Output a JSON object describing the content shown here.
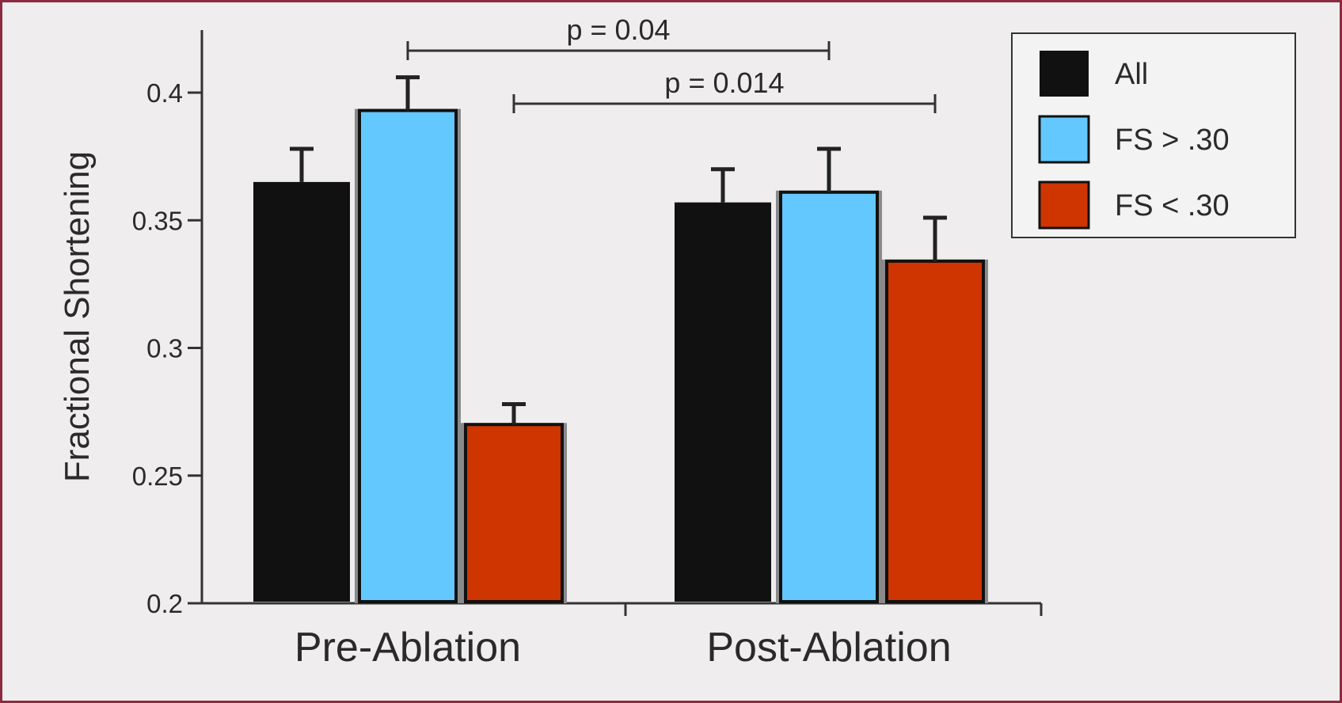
{
  "chart_data": {
    "type": "bar",
    "categories": [
      "Pre-Ablation",
      "Post-Ablation"
    ],
    "ylabel": "Fractional Shortening",
    "xlabel": "",
    "ylim": [
      0.2,
      0.4
    ],
    "yticks": [
      "0.2",
      "0.25",
      "0.3",
      "0.35",
      "0.4"
    ],
    "legend_position": "top-right",
    "series": [
      {
        "name": "All",
        "color": "#111111",
        "values": [
          0.365,
          0.357
        ],
        "errors": [
          0.013,
          0.013
        ]
      },
      {
        "name": "FS > .30",
        "color": "#63c8fd",
        "values": [
          0.393,
          0.361
        ],
        "errors": [
          0.013,
          0.017
        ]
      },
      {
        "name": "FS < .30",
        "color": "#cf3500",
        "values": [
          0.27,
          0.334
        ],
        "errors": [
          0.008,
          0.017
        ]
      }
    ],
    "annotations": [
      {
        "text": "p = 0.04",
        "from": "Pre-Ablation FS > .30",
        "to": "Post-Ablation FS > .30"
      },
      {
        "text": "p = 0.014",
        "from": "Pre-Ablation FS < .30",
        "to": "Post-Ablation FS < .30"
      }
    ]
  }
}
